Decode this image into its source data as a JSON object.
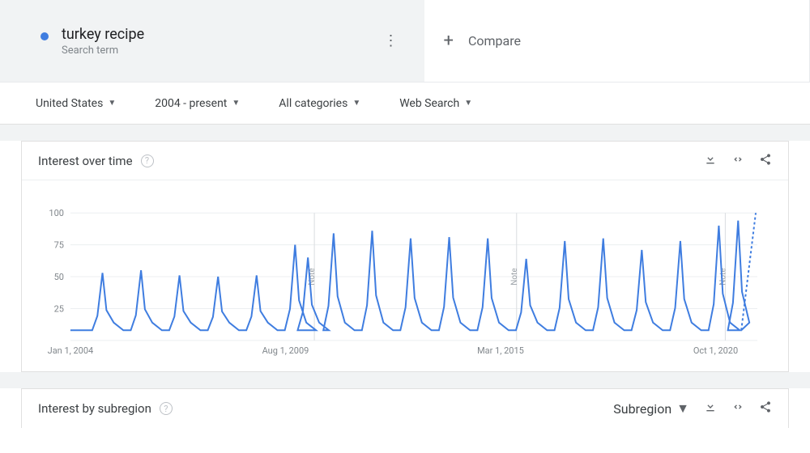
{
  "term": {
    "title": "turkey recipe",
    "sub": "Search term"
  },
  "compare": {
    "label": "Compare"
  },
  "filters": [
    {
      "label": "United States"
    },
    {
      "label": "2004 - present"
    },
    {
      "label": "All categories"
    },
    {
      "label": "Web Search"
    }
  ],
  "card1": {
    "title": "Interest over time",
    "chart": {
      "type": "line",
      "series_color": "#3f7de0",
      "background": "#ffffff",
      "grid_color": "#eceff1",
      "axis_text_color": "#80868b",
      "line_width": 2,
      "ylim": [
        0,
        100
      ],
      "yticks": [
        25,
        50,
        75,
        100
      ],
      "xlabels": [
        {
          "t": 0,
          "text": "Jan 1, 2004",
          "anchor": "start"
        },
        {
          "t": 67,
          "text": "Aug 1, 2009"
        },
        {
          "t": 134,
          "text": "Mar 1, 2015"
        },
        {
          "t": 201,
          "text": "Oct 1, 2020"
        }
      ],
      "notes": [
        76,
        139,
        204
      ],
      "baseline": 8,
      "bump": 14,
      "peaks": [
        {
          "t": 10,
          "v": 53
        },
        {
          "t": 22,
          "v": 55
        },
        {
          "t": 34,
          "v": 51
        },
        {
          "t": 46,
          "v": 50
        },
        {
          "t": 58,
          "v": 51
        },
        {
          "t": 70,
          "v": 75
        },
        {
          "t": 74,
          "v": 65
        },
        {
          "t": 82,
          "v": 84
        },
        {
          "t": 94,
          "v": 86
        },
        {
          "t": 106,
          "v": 80
        },
        {
          "t": 118,
          "v": 81
        },
        {
          "t": 130,
          "v": 80
        },
        {
          "t": 142,
          "v": 64
        },
        {
          "t": 154,
          "v": 78
        },
        {
          "t": 166,
          "v": 80
        },
        {
          "t": 178,
          "v": 71
        },
        {
          "t": 190,
          "v": 78
        },
        {
          "t": 202,
          "v": 90
        }
      ],
      "tail_peak": {
        "t": 208,
        "v": 94
      },
      "t_solid_end": 209,
      "t_end": 214
    }
  },
  "card2": {
    "title": "Interest by subregion",
    "dropdown": "Subregion"
  }
}
